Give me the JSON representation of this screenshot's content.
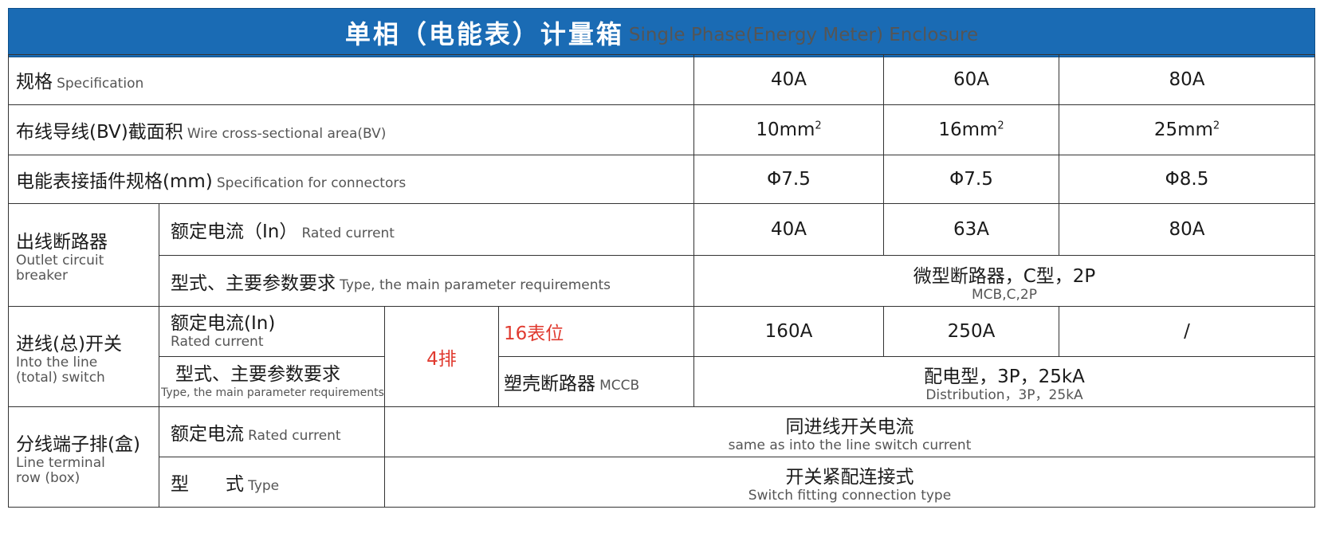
{
  "title": {
    "cn": "单相（电能表）计量箱",
    "en": "Single Phase(Energy Meter) Enclosure"
  },
  "rows": {
    "spec": {
      "label_cn": "规格",
      "label_en": "Specification",
      "values": [
        "40A",
        "60A",
        "80A"
      ]
    },
    "wire": {
      "label_cn": "布线导线(BV)截面积",
      "label_en": "Wire cross-sectional area(BV)",
      "values": [
        "10mm",
        "16mm",
        "25mm"
      ],
      "superscript": "2"
    },
    "connector": {
      "label_cn": "电能表接插件规格(mm)",
      "label_en": "Specification for connectors",
      "values": [
        "Φ7.5",
        "Φ7.5",
        "Φ8.5"
      ]
    },
    "outlet_breaker": {
      "group_cn": "出线断路器",
      "group_en_1": "Outlet circuit",
      "group_en_2": "breaker",
      "rated_cn": "额定电流（In）",
      "rated_en": "Rated current",
      "rated_values": [
        "40A",
        "63A",
        "80A"
      ],
      "type_cn": "型式、主要参数要求",
      "type_en": "Type, the main parameter requirements",
      "type_value_cn": "微型断路器，C型，2P",
      "type_value_en": "MCB,C,2P"
    },
    "main_switch": {
      "group_cn": "进线(总)开关",
      "group_en_1": "Into the line",
      "group_en_2": "(total) switch",
      "rated_cn": "额定电流(In)",
      "rated_en": "Rated current",
      "rows_label": "4排",
      "positions_label": "16表位",
      "rated_values": [
        "160A",
        "250A",
        "/"
      ],
      "type_cn": "型式、主要参数要求",
      "type_en": "Type, the main parameter requirements",
      "mccb_cn": "塑壳断路器",
      "mccb_en": "MCCB",
      "type_value_cn": "配电型，3P，25kA",
      "type_value_en": "Distribution，3P，25kA"
    },
    "terminal": {
      "group_cn": "分线端子排(盒)",
      "group_en_1": "Line terminal",
      "group_en_2": "row (box)",
      "rated_cn": "额定电流",
      "rated_en": "Rated current",
      "rated_value_cn": "同进线开关电流",
      "rated_value_en": "same as into the line switch current",
      "type_cn": "型　　式",
      "type_en": "Type",
      "type_value_cn": "开关紧配连接式",
      "type_value_en": "Switch fitting connection type"
    }
  }
}
